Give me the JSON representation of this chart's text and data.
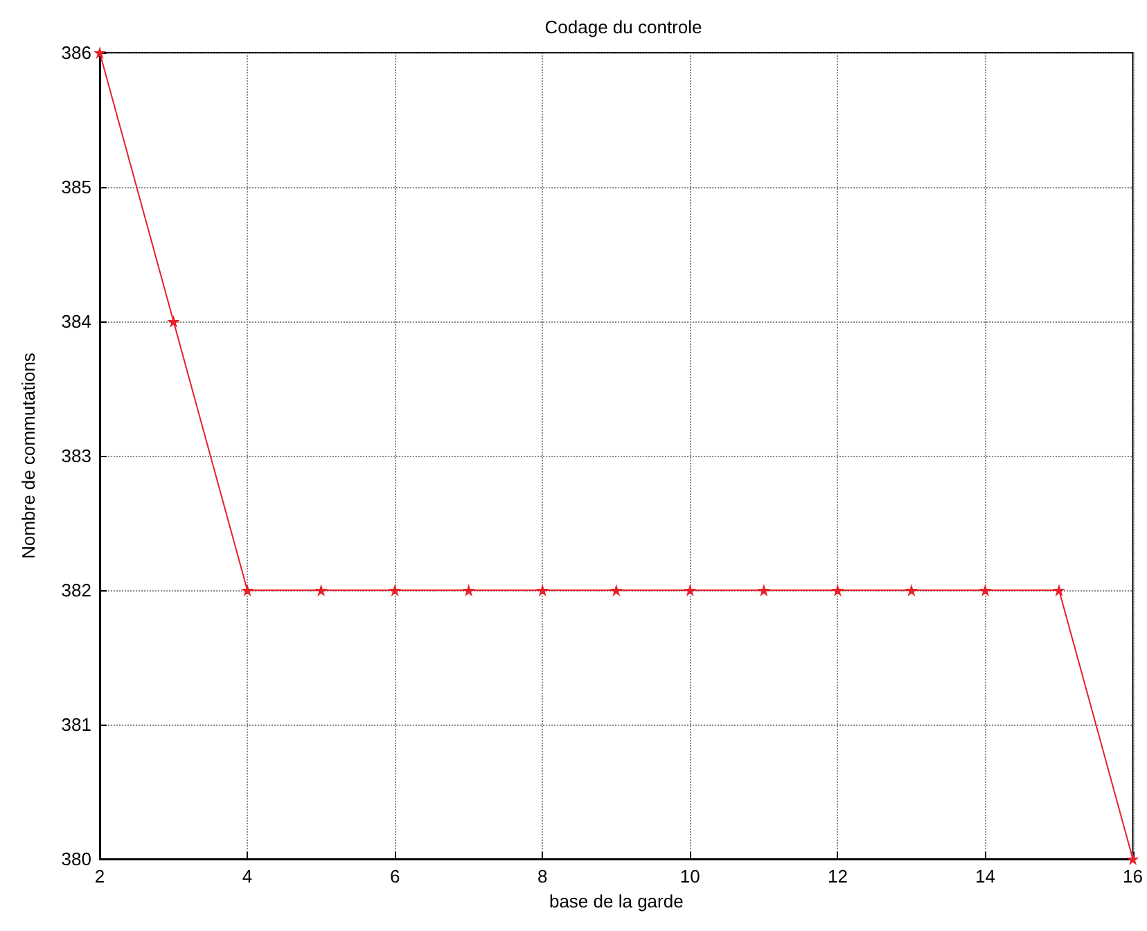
{
  "chart_data": {
    "type": "line",
    "title": "Codage du controle",
    "xlabel": "base de la garde",
    "ylabel": "Nombre de commutations",
    "x": [
      2,
      3,
      4,
      5,
      6,
      7,
      8,
      9,
      10,
      11,
      12,
      13,
      14,
      15,
      16
    ],
    "series": [
      {
        "color": "#e8202a",
        "values": [
          386,
          384,
          382,
          382,
          382,
          382,
          382,
          382,
          382,
          382,
          382,
          382,
          382,
          382,
          380
        ]
      }
    ],
    "xlim": [
      2,
      16
    ],
    "xticks": [
      2,
      4,
      6,
      8,
      10,
      12,
      14,
      16
    ],
    "ylim": [
      380,
      386
    ],
    "yticks": [
      380,
      381,
      382,
      383,
      384,
      385,
      386
    ],
    "grid": true,
    "marker": "star",
    "line_style": "solid"
  }
}
